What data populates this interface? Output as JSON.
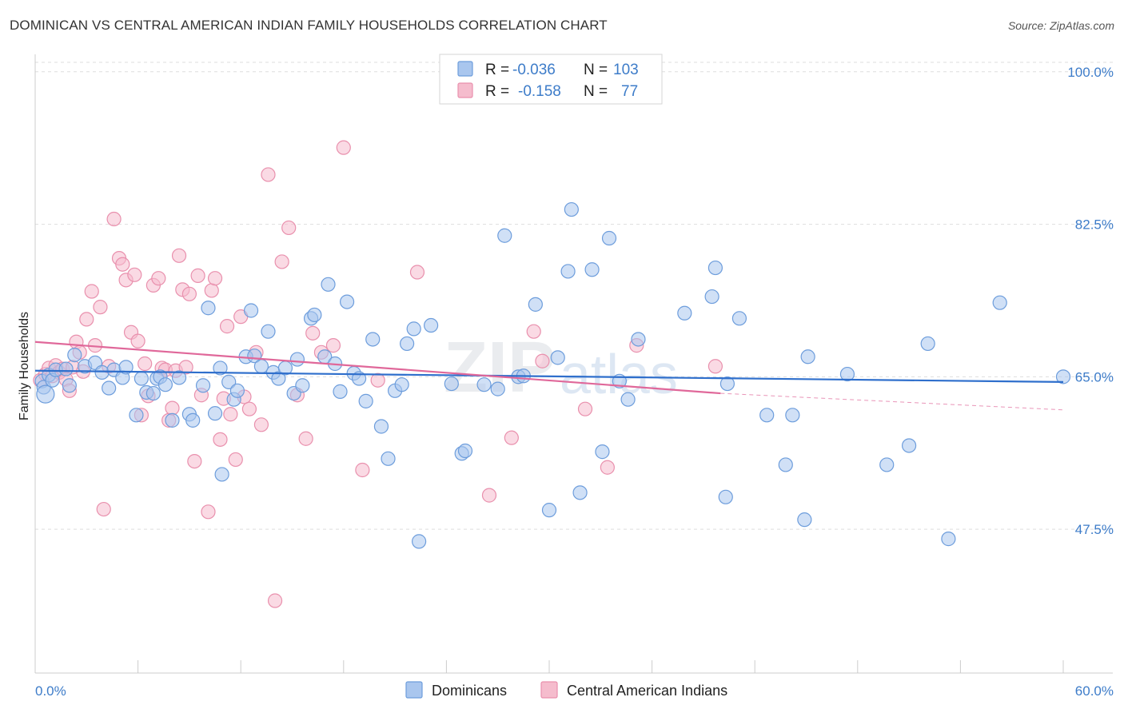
{
  "title": "DOMINICAN VS CENTRAL AMERICAN INDIAN FAMILY HOUSEHOLDS CORRELATION CHART",
  "source": "Source: ZipAtlas.com",
  "watermark": {
    "main": "ZIP",
    "sub": "atlas"
  },
  "colors": {
    "blue_fill": "#a9c6ee",
    "blue_stroke": "#6d9ddc",
    "blue_line": "#2f6fcc",
    "pink_fill": "#f5bccd",
    "pink_stroke": "#e990ad",
    "pink_line": "#e0689a",
    "grid": "#dddddd",
    "tick_text": "#3d7cc9"
  },
  "legend": {
    "rows": [
      {
        "r_label": "R = ",
        "r_value": "-0.036",
        "n_label": "N = ",
        "n_value": "103"
      },
      {
        "r_label": "R = ",
        "r_value": "-0.158",
        "n_label": "N = ",
        "n_value": "77"
      }
    ]
  },
  "chart_data": {
    "type": "scatter",
    "title": "DOMINICAN VS CENTRAL AMERICAN INDIAN FAMILY HOUSEHOLDS CORRELATION CHART",
    "xlabel": "",
    "ylabel": "Family Households",
    "xlim": [
      0,
      60
    ],
    "ylim": [
      31,
      102
    ],
    "x_tick_labels": [
      "0.0%",
      "60.0%"
    ],
    "y_ticks": [
      47.5,
      65.0,
      82.5,
      100.0
    ],
    "y_tick_labels": [
      "47.5%",
      "65.0%",
      "82.5%",
      "100.0%"
    ],
    "grid": true,
    "legend_position": "top-center",
    "series": [
      {
        "name": "Dominicans",
        "r": -0.036,
        "n": 103,
        "trend": {
          "x": [
            0,
            60
          ],
          "y": [
            65.7,
            64.4
          ]
        },
        "points": [
          [
            0.4,
            64.5
          ],
          [
            0.5,
            63.8
          ],
          [
            0.6,
            63.0
          ],
          [
            0.8,
            65.2
          ],
          [
            1.0,
            64.6
          ],
          [
            1.2,
            65.8
          ],
          [
            1.8,
            65.9
          ],
          [
            2.0,
            64.0
          ],
          [
            2.3,
            67.5
          ],
          [
            2.9,
            66.2
          ],
          [
            3.5,
            66.6
          ],
          [
            3.9,
            65.5
          ],
          [
            4.3,
            63.7
          ],
          [
            4.6,
            65.8
          ],
          [
            5.1,
            64.9
          ],
          [
            5.3,
            66.1
          ],
          [
            5.9,
            60.6
          ],
          [
            6.2,
            64.8
          ],
          [
            6.5,
            63.2
          ],
          [
            6.9,
            63.1
          ],
          [
            7.1,
            64.8
          ],
          [
            7.3,
            65.0
          ],
          [
            7.6,
            64.1
          ],
          [
            8.0,
            60.0
          ],
          [
            8.4,
            64.9
          ],
          [
            9.0,
            60.7
          ],
          [
            9.2,
            60.0
          ],
          [
            9.8,
            64.0
          ],
          [
            10.1,
            72.9
          ],
          [
            10.5,
            60.8
          ],
          [
            10.8,
            66.0
          ],
          [
            10.9,
            53.8
          ],
          [
            11.3,
            64.4
          ],
          [
            11.6,
            62.4
          ],
          [
            11.8,
            63.4
          ],
          [
            12.3,
            67.3
          ],
          [
            12.6,
            72.6
          ],
          [
            12.8,
            67.4
          ],
          [
            13.2,
            66.2
          ],
          [
            13.6,
            70.2
          ],
          [
            13.9,
            65.5
          ],
          [
            14.2,
            64.8
          ],
          [
            14.6,
            66.0
          ],
          [
            15.1,
            63.1
          ],
          [
            15.3,
            67.0
          ],
          [
            15.6,
            64.0
          ],
          [
            16.1,
            71.7
          ],
          [
            16.3,
            72.1
          ],
          [
            16.9,
            67.3
          ],
          [
            17.1,
            75.6
          ],
          [
            17.5,
            66.5
          ],
          [
            17.8,
            63.3
          ],
          [
            18.2,
            73.6
          ],
          [
            18.6,
            65.4
          ],
          [
            18.9,
            64.8
          ],
          [
            19.3,
            62.2
          ],
          [
            19.7,
            69.3
          ],
          [
            20.2,
            59.3
          ],
          [
            20.6,
            55.6
          ],
          [
            21.0,
            63.4
          ],
          [
            21.4,
            64.1
          ],
          [
            21.7,
            68.8
          ],
          [
            22.1,
            70.5
          ],
          [
            22.4,
            46.1
          ],
          [
            23.1,
            70.9
          ],
          [
            24.3,
            64.2
          ],
          [
            24.9,
            56.2
          ],
          [
            25.1,
            56.5
          ],
          [
            26.2,
            64.1
          ],
          [
            27.0,
            63.6
          ],
          [
            27.4,
            81.2
          ],
          [
            28.2,
            65.0
          ],
          [
            28.5,
            65.1
          ],
          [
            29.2,
            73.3
          ],
          [
            30.0,
            49.7
          ],
          [
            30.5,
            67.2
          ],
          [
            31.1,
            77.1
          ],
          [
            31.3,
            84.2
          ],
          [
            31.8,
            51.7
          ],
          [
            32.5,
            77.3
          ],
          [
            33.1,
            56.4
          ],
          [
            33.5,
            80.9
          ],
          [
            34.1,
            64.5
          ],
          [
            34.6,
            62.4
          ],
          [
            35.2,
            69.3
          ],
          [
            37.9,
            72.3
          ],
          [
            39.5,
            74.2
          ],
          [
            39.7,
            77.5
          ],
          [
            40.3,
            51.2
          ],
          [
            40.4,
            64.2
          ],
          [
            41.1,
            71.7
          ],
          [
            42.7,
            60.6
          ],
          [
            43.8,
            54.9
          ],
          [
            44.2,
            60.6
          ],
          [
            44.9,
            48.6
          ],
          [
            45.1,
            67.3
          ],
          [
            47.4,
            65.3
          ],
          [
            49.7,
            54.9
          ],
          [
            51.0,
            57.1
          ],
          [
            52.1,
            68.8
          ],
          [
            53.3,
            46.4
          ],
          [
            56.3,
            73.5
          ],
          [
            60.0,
            65.0
          ]
        ]
      },
      {
        "name": "Central American Indians",
        "r": -0.158,
        "n": 77,
        "trend": {
          "x": [
            0,
            40
          ],
          "y": [
            69.0,
            63.1
          ],
          "dashed_to": {
            "x": 60,
            "y": 61.2
          }
        },
        "points": [
          [
            0.3,
            64.6
          ],
          [
            0.6,
            65.3
          ],
          [
            0.8,
            66.0
          ],
          [
            1.0,
            65.1
          ],
          [
            1.2,
            66.3
          ],
          [
            1.4,
            65.5
          ],
          [
            1.6,
            65.9
          ],
          [
            1.8,
            64.7
          ],
          [
            2.0,
            63.4
          ],
          [
            2.2,
            66.1
          ],
          [
            2.4,
            69.0
          ],
          [
            2.6,
            67.8
          ],
          [
            2.8,
            65.6
          ],
          [
            3.0,
            71.6
          ],
          [
            3.3,
            74.8
          ],
          [
            3.5,
            68.6
          ],
          [
            3.8,
            73.0
          ],
          [
            4.0,
            49.8
          ],
          [
            4.3,
            66.2
          ],
          [
            4.6,
            83.1
          ],
          [
            4.9,
            78.6
          ],
          [
            5.1,
            77.9
          ],
          [
            5.3,
            76.1
          ],
          [
            5.6,
            70.1
          ],
          [
            5.8,
            76.7
          ],
          [
            6.0,
            69.1
          ],
          [
            6.2,
            60.6
          ],
          [
            6.4,
            66.5
          ],
          [
            6.6,
            62.8
          ],
          [
            6.9,
            75.5
          ],
          [
            7.2,
            76.3
          ],
          [
            7.4,
            66.0
          ],
          [
            7.6,
            65.8
          ],
          [
            7.8,
            60.0
          ],
          [
            8.0,
            61.4
          ],
          [
            8.2,
            65.7
          ],
          [
            8.4,
            78.9
          ],
          [
            8.6,
            75.0
          ],
          [
            8.8,
            66.1
          ],
          [
            9.0,
            74.5
          ],
          [
            9.3,
            55.3
          ],
          [
            9.5,
            76.6
          ],
          [
            9.7,
            62.9
          ],
          [
            10.1,
            49.5
          ],
          [
            10.3,
            74.9
          ],
          [
            10.5,
            76.3
          ],
          [
            10.8,
            57.8
          ],
          [
            11.0,
            62.5
          ],
          [
            11.2,
            70.8
          ],
          [
            11.4,
            60.7
          ],
          [
            11.7,
            55.5
          ],
          [
            12.0,
            71.9
          ],
          [
            12.2,
            62.7
          ],
          [
            12.5,
            61.3
          ],
          [
            12.9,
            67.8
          ],
          [
            13.2,
            59.5
          ],
          [
            13.6,
            88.2
          ],
          [
            14.0,
            39.3
          ],
          [
            14.4,
            78.2
          ],
          [
            14.8,
            82.1
          ],
          [
            15.3,
            62.9
          ],
          [
            15.8,
            57.9
          ],
          [
            16.2,
            70.0
          ],
          [
            16.7,
            67.8
          ],
          [
            17.4,
            68.6
          ],
          [
            18.0,
            91.3
          ],
          [
            19.1,
            54.3
          ],
          [
            20.0,
            64.6
          ],
          [
            22.3,
            77.0
          ],
          [
            26.5,
            51.4
          ],
          [
            27.8,
            58.0
          ],
          [
            29.1,
            70.2
          ],
          [
            29.6,
            66.8
          ],
          [
            32.1,
            61.3
          ],
          [
            33.4,
            54.6
          ],
          [
            35.1,
            68.6
          ],
          [
            39.7,
            66.2
          ]
        ]
      }
    ]
  },
  "bottom_legend": [
    {
      "label": "Dominicans"
    },
    {
      "label": "Central American Indians"
    }
  ]
}
